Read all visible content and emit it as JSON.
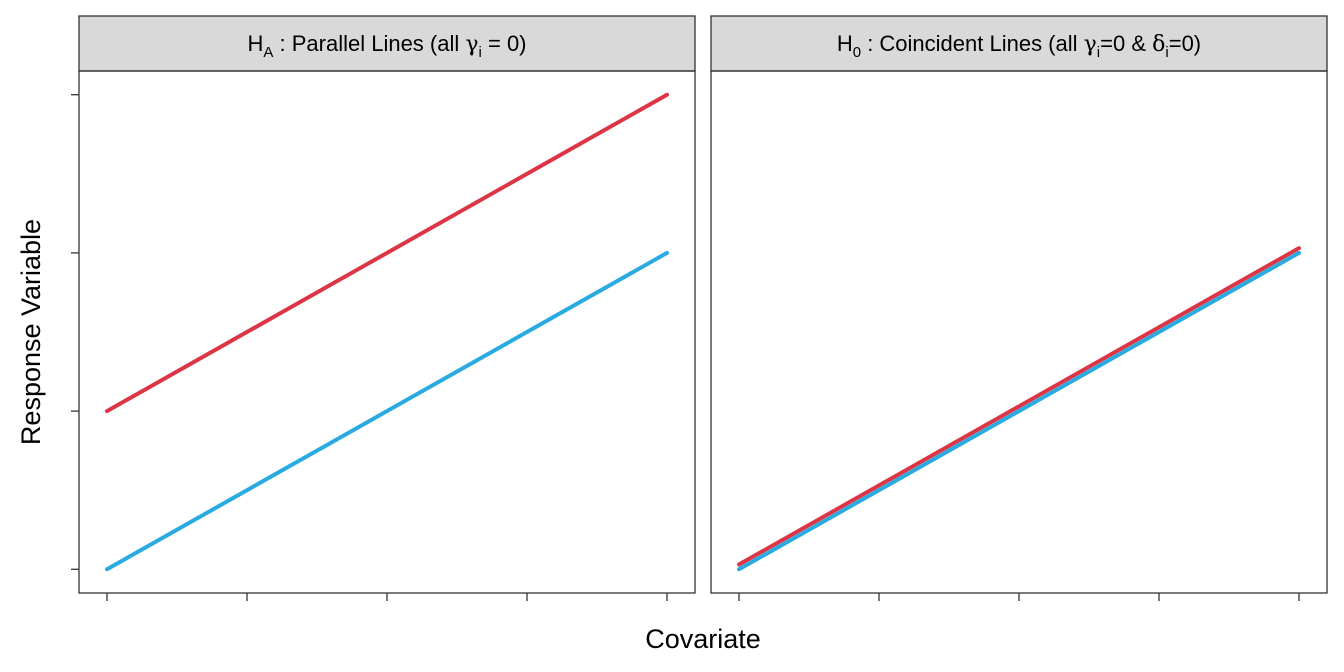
{
  "colors": {
    "strip_fill": "#d9d9d9",
    "frame": "#333333",
    "tick": "#333333"
  },
  "axis_titles": {
    "x": "Covariate",
    "y": "Response Variable"
  },
  "chart_data": [
    {
      "type": "line",
      "title": "H_A : Parallel Lines (all γ_i = 0)",
      "title_parts": {
        "h": "H",
        "h_sub": "A",
        "text_a": " : Parallel Lines (all ",
        "gamma": "γ",
        "gamma_sub": "i",
        "text_b": " = 0)"
      },
      "xlabel": "Covariate",
      "ylabel": "Response Variable",
      "xlim": [
        -0.2,
        4.2
      ],
      "ylim": [
        -0.15,
        3.15
      ],
      "x_ticks": [
        0,
        1,
        2,
        3,
        4
      ],
      "y_ticks": [
        0,
        1,
        2,
        3
      ],
      "tick_labels_shown": false,
      "grid": false,
      "legend": "none",
      "series": [
        {
          "color": "#dc3545",
          "x": [
            0,
            4
          ],
          "y": [
            1,
            3
          ]
        },
        {
          "color": "#29abe2",
          "x": [
            0,
            4
          ],
          "y": [
            0,
            2
          ]
        }
      ]
    },
    {
      "type": "line",
      "title": "H_0 : Coincident Lines (all γ_i=0 & δ_i=0)",
      "title_parts": {
        "h": "H",
        "h_sub": "0",
        "text_a": " : Coincident Lines (all ",
        "gamma": "γ",
        "gamma_sub": "i",
        "text_b": "=0 & ",
        "delta": "δ",
        "delta_sub": "i",
        "text_c": "=0)"
      },
      "xlabel": "Covariate",
      "ylabel": "Response Variable",
      "xlim": [
        -0.2,
        4.2
      ],
      "ylim": [
        -0.15,
        3.15
      ],
      "x_ticks": [
        0,
        1,
        2,
        3,
        4
      ],
      "y_ticks": [
        0,
        1,
        2,
        3
      ],
      "tick_labels_shown": false,
      "grid": false,
      "legend": "none",
      "series": [
        {
          "color": "#dc3545",
          "x": [
            0,
            4
          ],
          "y": [
            0.03,
            2.03
          ]
        },
        {
          "color": "#29abe2",
          "x": [
            0,
            4
          ],
          "y": [
            0,
            2
          ]
        }
      ]
    }
  ]
}
